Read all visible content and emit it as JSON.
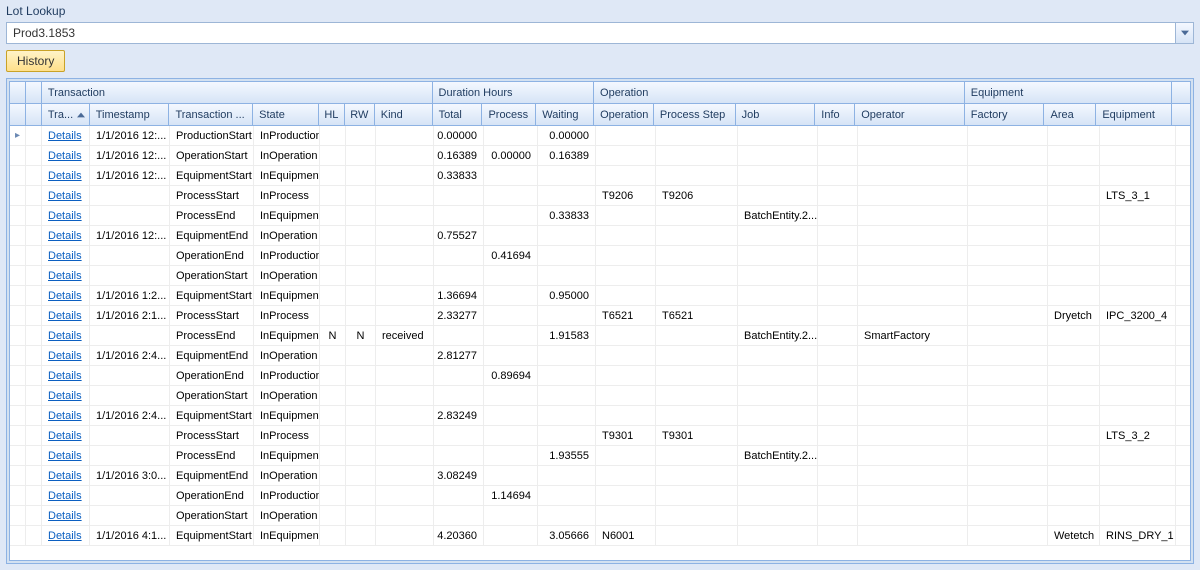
{
  "page": {
    "title": "Lot Lookup"
  },
  "lookup": {
    "value": "Prod3.1853"
  },
  "buttons": {
    "history": "History"
  },
  "colors": {
    "page_bg": "#dfe8f6",
    "panel_border": "#8db2e3",
    "header_bg_top": "#f4f8ff",
    "header_bg_bot": "#d6e4f6",
    "link": "#0b5fc1",
    "history_bg_top": "#fff3c8",
    "history_bg_bot": "#ffe08a",
    "history_border": "#c9a227"
  },
  "groupHeaders": {
    "transaction": "Transaction",
    "duration": "Duration Hours",
    "operation": "Operation",
    "equipment": "Equipment"
  },
  "columns": {
    "tra": "Tra...",
    "timestamp": "Timestamp",
    "trans_type": "Transaction ...",
    "state": "State",
    "hl": "HL",
    "rw": "RW",
    "kind": "Kind",
    "total": "Total",
    "process": "Process",
    "waiting": "Waiting",
    "operation": "Operation",
    "process_step": "Process Step",
    "job": "Job",
    "info": "Info",
    "operator": "Operator",
    "factory": "Factory",
    "area": "Area",
    "equipment": "Equipment"
  },
  "linkLabel": "Details",
  "rows": [
    {
      "ts": "1/1/2016 12:...",
      "type": "ProductionStart",
      "state": "InProduction",
      "hl": "",
      "rw": "",
      "kind": "",
      "total": "0.00000",
      "proc": "",
      "wait": "0.00000",
      "op": "",
      "step": "",
      "job": "",
      "info": "",
      "oper": "",
      "fac": "",
      "area": "",
      "equip": ""
    },
    {
      "ts": "1/1/2016 12:...",
      "type": "OperationStart",
      "state": "InOperation",
      "hl": "",
      "rw": "",
      "kind": "",
      "total": "0.16389",
      "proc": "0.00000",
      "wait": "0.16389",
      "op": "",
      "step": "",
      "job": "",
      "info": "",
      "oper": "",
      "fac": "",
      "area": "",
      "equip": ""
    },
    {
      "ts": "1/1/2016 12:...",
      "type": "EquipmentStart",
      "state": "InEquipment",
      "hl": "",
      "rw": "",
      "kind": "",
      "total": "0.33833",
      "proc": "",
      "wait": "",
      "op": "",
      "step": "",
      "job": "",
      "info": "",
      "oper": "",
      "fac": "",
      "area": "",
      "equip": ""
    },
    {
      "ts": "",
      "type": "ProcessStart",
      "state": "InProcess",
      "hl": "",
      "rw": "",
      "kind": "",
      "total": "",
      "proc": "",
      "wait": "",
      "op": "T9206",
      "step": "T9206",
      "job": "",
      "info": "",
      "oper": "",
      "fac": "",
      "area": "",
      "equip": "LTS_3_1"
    },
    {
      "ts": "",
      "type": "ProcessEnd",
      "state": "InEquipment",
      "hl": "",
      "rw": "",
      "kind": "",
      "total": "",
      "proc": "",
      "wait": "0.33833",
      "op": "",
      "step": "",
      "job": "BatchEntity.2...",
      "info": "",
      "oper": "",
      "fac": "",
      "area": "",
      "equip": ""
    },
    {
      "ts": "1/1/2016 12:...",
      "type": "EquipmentEnd",
      "state": "InOperation",
      "hl": "",
      "rw": "",
      "kind": "",
      "total": "0.75527",
      "proc": "",
      "wait": "",
      "op": "",
      "step": "",
      "job": "",
      "info": "",
      "oper": "",
      "fac": "",
      "area": "",
      "equip": ""
    },
    {
      "ts": "",
      "type": "OperationEnd",
      "state": "InProduction",
      "hl": "",
      "rw": "",
      "kind": "",
      "total": "",
      "proc": "0.41694",
      "wait": "",
      "op": "",
      "step": "",
      "job": "",
      "info": "",
      "oper": "",
      "fac": "",
      "area": "",
      "equip": ""
    },
    {
      "ts": "",
      "type": "OperationStart",
      "state": "InOperation",
      "hl": "",
      "rw": "",
      "kind": "",
      "total": "",
      "proc": "",
      "wait": "",
      "op": "",
      "step": "",
      "job": "",
      "info": "",
      "oper": "",
      "fac": "",
      "area": "",
      "equip": ""
    },
    {
      "ts": "1/1/2016 1:2...",
      "type": "EquipmentStart",
      "state": "InEquipment",
      "hl": "",
      "rw": "",
      "kind": "",
      "total": "1.36694",
      "proc": "",
      "wait": "0.95000",
      "op": "",
      "step": "",
      "job": "",
      "info": "",
      "oper": "",
      "fac": "",
      "area": "",
      "equip": ""
    },
    {
      "ts": "1/1/2016 2:1...",
      "type": "ProcessStart",
      "state": "InProcess",
      "hl": "",
      "rw": "",
      "kind": "",
      "total": "2.33277",
      "proc": "",
      "wait": "",
      "op": "T6521",
      "step": "T6521",
      "job": "",
      "info": "",
      "oper": "",
      "fac": "",
      "area": "Dryetch",
      "equip": "IPC_3200_4"
    },
    {
      "ts": "",
      "type": "ProcessEnd",
      "state": "InEquipment",
      "hl": "N",
      "rw": "N",
      "kind": "received",
      "total": "",
      "proc": "",
      "wait": "1.91583",
      "op": "",
      "step": "",
      "job": "BatchEntity.2...",
      "info": "",
      "oper": "SmartFactory",
      "fac": "",
      "area": "",
      "equip": ""
    },
    {
      "ts": "1/1/2016 2:4...",
      "type": "EquipmentEnd",
      "state": "InOperation",
      "hl": "",
      "rw": "",
      "kind": "",
      "total": "2.81277",
      "proc": "",
      "wait": "",
      "op": "",
      "step": "",
      "job": "",
      "info": "",
      "oper": "",
      "fac": "",
      "area": "",
      "equip": ""
    },
    {
      "ts": "",
      "type": "OperationEnd",
      "state": "InProduction",
      "hl": "",
      "rw": "",
      "kind": "",
      "total": "",
      "proc": "0.89694",
      "wait": "",
      "op": "",
      "step": "",
      "job": "",
      "info": "",
      "oper": "",
      "fac": "",
      "area": "",
      "equip": ""
    },
    {
      "ts": "",
      "type": "OperationStart",
      "state": "InOperation",
      "hl": "",
      "rw": "",
      "kind": "",
      "total": "",
      "proc": "",
      "wait": "",
      "op": "",
      "step": "",
      "job": "",
      "info": "",
      "oper": "",
      "fac": "",
      "area": "",
      "equip": ""
    },
    {
      "ts": "1/1/2016 2:4...",
      "type": "EquipmentStart",
      "state": "InEquipment",
      "hl": "",
      "rw": "",
      "kind": "",
      "total": "2.83249",
      "proc": "",
      "wait": "",
      "op": "",
      "step": "",
      "job": "",
      "info": "",
      "oper": "",
      "fac": "",
      "area": "",
      "equip": ""
    },
    {
      "ts": "",
      "type": "ProcessStart",
      "state": "InProcess",
      "hl": "",
      "rw": "",
      "kind": "",
      "total": "",
      "proc": "",
      "wait": "",
      "op": "T9301",
      "step": "T9301",
      "job": "",
      "info": "",
      "oper": "",
      "fac": "",
      "area": "",
      "equip": "LTS_3_2"
    },
    {
      "ts": "",
      "type": "ProcessEnd",
      "state": "InEquipment",
      "hl": "",
      "rw": "",
      "kind": "",
      "total": "",
      "proc": "",
      "wait": "1.93555",
      "op": "",
      "step": "",
      "job": "BatchEntity.2...",
      "info": "",
      "oper": "",
      "fac": "",
      "area": "",
      "equip": ""
    },
    {
      "ts": "1/1/2016 3:0...",
      "type": "EquipmentEnd",
      "state": "InOperation",
      "hl": "",
      "rw": "",
      "kind": "",
      "total": "3.08249",
      "proc": "",
      "wait": "",
      "op": "",
      "step": "",
      "job": "",
      "info": "",
      "oper": "",
      "fac": "",
      "area": "",
      "equip": ""
    },
    {
      "ts": "",
      "type": "OperationEnd",
      "state": "InProduction",
      "hl": "",
      "rw": "",
      "kind": "",
      "total": "",
      "proc": "1.14694",
      "wait": "",
      "op": "",
      "step": "",
      "job": "",
      "info": "",
      "oper": "",
      "fac": "",
      "area": "",
      "equip": ""
    },
    {
      "ts": "",
      "type": "OperationStart",
      "state": "InOperation",
      "hl": "",
      "rw": "",
      "kind": "",
      "total": "",
      "proc": "",
      "wait": "",
      "op": "",
      "step": "",
      "job": "",
      "info": "",
      "oper": "",
      "fac": "",
      "area": "",
      "equip": ""
    },
    {
      "ts": "1/1/2016 4:1...",
      "type": "EquipmentStart",
      "state": "InEquipment",
      "hl": "",
      "rw": "",
      "kind": "",
      "total": "4.20360",
      "proc": "",
      "wait": "3.05666",
      "op": "N6001",
      "step": "",
      "job": "",
      "info": "",
      "oper": "",
      "fac": "",
      "area": "Wetetch",
      "equip": "RINS_DRY_1"
    }
  ],
  "groupWidths": {
    "expand": 16,
    "sel": 16,
    "transaction": 392,
    "duration": 162,
    "operation": 372,
    "equipment": 208,
    "scroll": 18
  }
}
